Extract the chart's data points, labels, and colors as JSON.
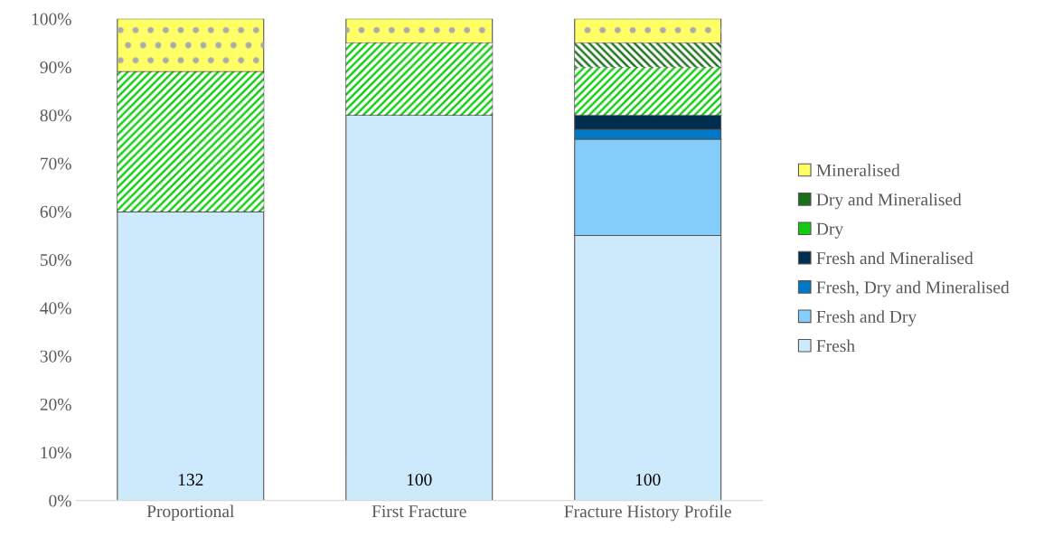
{
  "chart_data": {
    "type": "bar",
    "stacked": true,
    "categories": [
      "Proportional",
      "First Fracture",
      "Fracture History Profile"
    ],
    "series": [
      {
        "name": "Fresh",
        "color": "#cdeafc",
        "values": [
          60,
          80,
          55
        ]
      },
      {
        "name": "Fresh and Dry",
        "color": "#84cdfb",
        "values": [
          0,
          0,
          20
        ]
      },
      {
        "name": "Fresh, Dry and Mineralised",
        "color": "#0078c8",
        "values": [
          0,
          0,
          2
        ]
      },
      {
        "name": "Fresh and Mineralised",
        "color": "#002e50",
        "values": [
          0,
          0,
          3
        ]
      },
      {
        "name": "Dry",
        "color": "#11cc11",
        "values": [
          29,
          15,
          10
        ]
      },
      {
        "name": "Dry and Mineralised",
        "color": "#1a701a",
        "values": [
          0,
          0,
          5
        ]
      },
      {
        "name": "Mineralised",
        "color": "#ffff66",
        "values": [
          11,
          5,
          5
        ]
      }
    ],
    "ylim": [
      0,
      100
    ],
    "yticks": [
      {
        "value": 0,
        "label": "0%"
      },
      {
        "value": 10,
        "label": "10%"
      },
      {
        "value": 20,
        "label": "20%"
      },
      {
        "value": 30,
        "label": "30%"
      },
      {
        "value": 40,
        "label": "40%"
      },
      {
        "value": 50,
        "label": "50%"
      },
      {
        "value": 60,
        "label": "60%"
      },
      {
        "value": 70,
        "label": "70%"
      },
      {
        "value": 80,
        "label": "80%"
      },
      {
        "value": 90,
        "label": "90%"
      },
      {
        "value": 100,
        "label": "100%"
      }
    ],
    "annotations": [
      "132",
      "100",
      "100"
    ],
    "legend": "right",
    "grid": false
  }
}
